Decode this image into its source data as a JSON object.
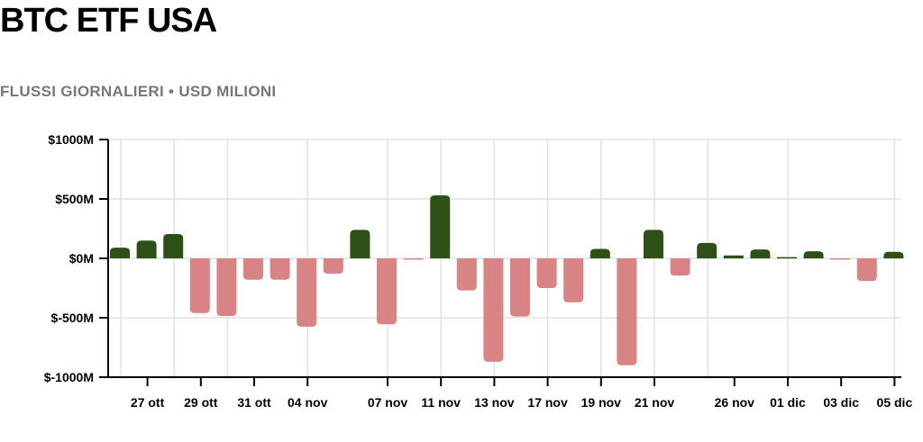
{
  "chart_data": {
    "type": "bar",
    "title": "BTC ETF USA",
    "subtitle": "FLUSSI GIORNALIERI • USD MILIONI",
    "xlabel": "",
    "ylabel": "",
    "ylim": [
      -1000,
      1000
    ],
    "yticks": [
      1000,
      500,
      0,
      -500,
      -1000
    ],
    "ytick_labels": [
      "$1000M",
      "$500M",
      "$0M",
      "$-500M",
      "$-1000M"
    ],
    "categories": [
      "",
      "27 ott",
      "",
      "29 ott",
      "",
      "31 ott",
      "",
      "04 nov",
      "",
      "",
      "07 nov",
      "",
      "11 nov",
      "",
      "13 nov",
      "",
      "17 nov",
      "",
      "19 nov",
      "",
      "21 nov",
      "",
      "",
      "26 nov",
      "",
      "01 dic",
      "",
      "03 dic",
      "",
      "05 dic"
    ],
    "values": [
      90,
      150,
      205,
      -460,
      -485,
      -180,
      -180,
      -575,
      -130,
      240,
      -555,
      -5,
      530,
      -270,
      -870,
      -490,
      -250,
      -370,
      80,
      -900,
      240,
      -145,
      130,
      25,
      75,
      10,
      60,
      -10,
      -190,
      55
    ],
    "grid": true,
    "colors": {
      "positive": "#2d5016",
      "negative": "#d98484",
      "grid": "#e2e2e2",
      "axis": "#000000"
    }
  }
}
